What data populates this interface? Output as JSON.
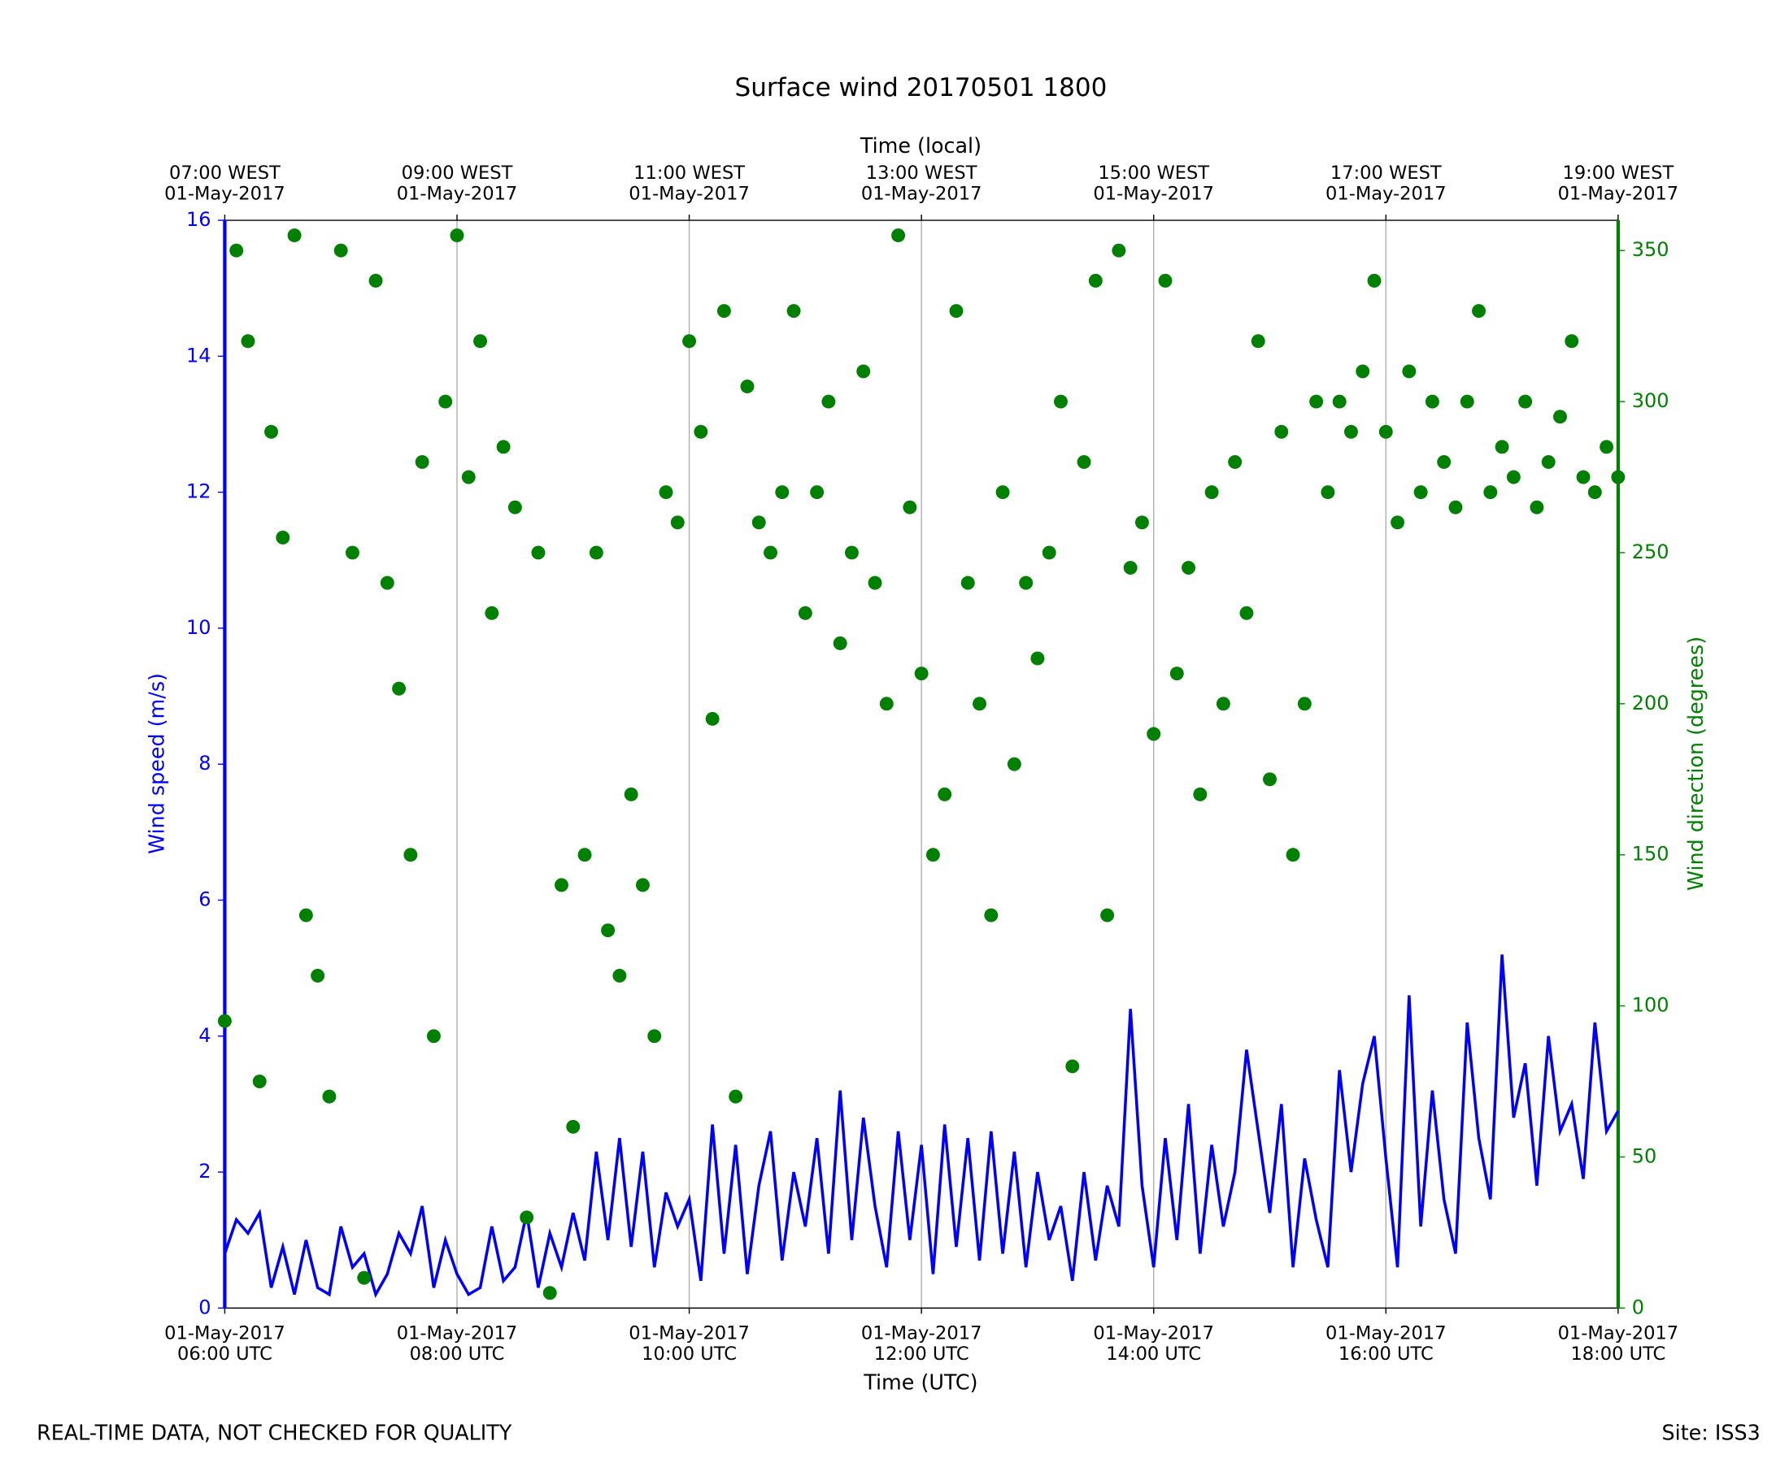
{
  "chart_data": {
    "type": "line",
    "title": "Surface wind 20170501 1800",
    "xlabel": "Time (UTC)",
    "x2label": "Time (local)",
    "ylabel": "Wind speed (m/s)",
    "y2label": "Wind direction (degrees)",
    "footer_left": "REAL-TIME DATA, NOT CHECKED FOR QUALITY",
    "footer_right": "Site: ISS3",
    "grid": true,
    "xlim": [
      6,
      18
    ],
    "xticks": [
      {
        "value": 6,
        "label": "01-May-2017\n06:00 UTC"
      },
      {
        "value": 8,
        "label": "01-May-2017\n08:00 UTC"
      },
      {
        "value": 10,
        "label": "01-May-2017\n10:00 UTC"
      },
      {
        "value": 12,
        "label": "01-May-2017\n12:00 UTC"
      },
      {
        "value": 14,
        "label": "01-May-2017\n14:00 UTC"
      },
      {
        "value": 16,
        "label": "01-May-2017\n16:00 UTC"
      },
      {
        "value": 18,
        "label": "01-May-2017\n18:00 UTC"
      }
    ],
    "x2ticks": [
      {
        "value": 6,
        "label": "07:00 WEST\n01-May-2017"
      },
      {
        "value": 8,
        "label": "09:00 WEST\n01-May-2017"
      },
      {
        "value": 10,
        "label": "11:00 WEST\n01-May-2017"
      },
      {
        "value": 12,
        "label": "13:00 WEST\n01-May-2017"
      },
      {
        "value": 14,
        "label": "15:00 WEST\n01-May-2017"
      },
      {
        "value": 16,
        "label": "17:00 WEST\n01-May-2017"
      },
      {
        "value": 18,
        "label": "19:00 WEST\n01-May-2017"
      }
    ],
    "ylim": [
      0,
      16
    ],
    "yticks": [
      0,
      2,
      4,
      6,
      8,
      10,
      12,
      14,
      16
    ],
    "y2lim": [
      0,
      360
    ],
    "y2ticks": [
      0,
      50,
      100,
      150,
      200,
      250,
      300,
      350
    ],
    "x": [
      6.0,
      6.1,
      6.2,
      6.3,
      6.4,
      6.5,
      6.6,
      6.7,
      6.8,
      6.9,
      7.0,
      7.1,
      7.2,
      7.3,
      7.4,
      7.5,
      7.6,
      7.7,
      7.8,
      7.9,
      8.0,
      8.1,
      8.2,
      8.3,
      8.4,
      8.5,
      8.6,
      8.7,
      8.8,
      8.9,
      9.0,
      9.1,
      9.2,
      9.3,
      9.4,
      9.5,
      9.6,
      9.7,
      9.8,
      9.9,
      10.0,
      10.1,
      10.2,
      10.3,
      10.4,
      10.5,
      10.6,
      10.7,
      10.8,
      10.9,
      11.0,
      11.1,
      11.2,
      11.3,
      11.4,
      11.5,
      11.6,
      11.7,
      11.8,
      11.9,
      12.0,
      12.1,
      12.2,
      12.3,
      12.4,
      12.5,
      12.6,
      12.7,
      12.8,
      12.9,
      13.0,
      13.1,
      13.2,
      13.3,
      13.4,
      13.5,
      13.6,
      13.7,
      13.8,
      13.9,
      14.0,
      14.1,
      14.2,
      14.3,
      14.4,
      14.5,
      14.6,
      14.7,
      14.8,
      14.9,
      15.0,
      15.1,
      15.2,
      15.3,
      15.4,
      15.5,
      15.6,
      15.7,
      15.8,
      15.9,
      16.0,
      16.1,
      16.2,
      16.3,
      16.4,
      16.5,
      16.6,
      16.7,
      16.8,
      16.9,
      17.0,
      17.1,
      17.2,
      17.3,
      17.4,
      17.5,
      17.6,
      17.7,
      17.8,
      17.9,
      18.0
    ],
    "series": [
      {
        "name": "Wind speed",
        "color": "#0000ff",
        "axis": "y",
        "mode": "line",
        "values": [
          0.8,
          1.3,
          1.1,
          1.4,
          0.3,
          0.9,
          0.2,
          1.0,
          0.3,
          0.2,
          1.2,
          0.6,
          0.8,
          0.2,
          0.5,
          1.1,
          0.8,
          1.5,
          0.3,
          1.0,
          0.5,
          0.2,
          0.3,
          1.2,
          0.4,
          0.6,
          1.4,
          0.3,
          1.1,
          0.6,
          1.4,
          0.7,
          2.3,
          1.0,
          2.5,
          0.9,
          2.3,
          0.6,
          1.7,
          1.2,
          1.6,
          0.4,
          2.7,
          0.8,
          2.4,
          0.5,
          1.8,
          2.6,
          0.7,
          2.0,
          1.2,
          2.5,
          0.8,
          3.2,
          1.0,
          2.8,
          1.5,
          0.6,
          2.6,
          1.0,
          2.4,
          0.5,
          2.7,
          0.9,
          2.5,
          0.7,
          2.6,
          0.8,
          2.3,
          0.6,
          2.0,
          1.0,
          1.5,
          0.4,
          2.0,
          0.7,
          1.8,
          1.2,
          4.4,
          1.8,
          0.6,
          2.5,
          1.0,
          3.0,
          0.8,
          2.4,
          1.2,
          2.0,
          3.8,
          2.6,
          1.4,
          3.0,
          0.6,
          2.2,
          1.3,
          0.6,
          3.5,
          2.0,
          3.3,
          4.0,
          2.2,
          0.6,
          4.6,
          1.2,
          3.2,
          1.6,
          0.8,
          4.2,
          2.5,
          1.6,
          5.2,
          2.8,
          3.6,
          1.8,
          4.0,
          2.6,
          3.0,
          1.9,
          4.2,
          2.6,
          2.9
        ]
      },
      {
        "name": "Wind direction",
        "color": "#008000",
        "axis": "y2",
        "mode": "markers",
        "values": [
          95,
          350,
          320,
          75,
          290,
          255,
          355,
          130,
          110,
          70,
          350,
          250,
          10,
          340,
          240,
          205,
          150,
          280,
          90,
          300,
          355,
          275,
          320,
          230,
          285,
          265,
          30,
          250,
          5,
          140,
          60,
          150,
          250,
          125,
          110,
          170,
          140,
          90,
          270,
          260,
          320,
          290,
          195,
          330,
          70,
          305,
          260,
          250,
          270,
          330,
          230,
          270,
          300,
          220,
          250,
          310,
          240,
          200,
          355,
          265,
          210,
          150,
          170,
          330,
          240,
          200,
          130,
          270,
          180,
          240,
          215,
          250,
          300,
          80,
          280,
          340,
          130,
          350,
          245,
          260,
          190,
          340,
          210,
          245,
          170,
          270,
          200,
          280,
          230,
          320,
          175,
          290,
          150,
          200,
          300,
          270,
          300,
          290,
          310,
          340,
          290,
          260,
          310,
          270,
          300,
          280,
          265,
          300,
          330,
          270,
          285,
          275,
          300,
          265,
          280,
          295,
          320,
          275,
          270,
          285,
          275
        ]
      }
    ]
  }
}
